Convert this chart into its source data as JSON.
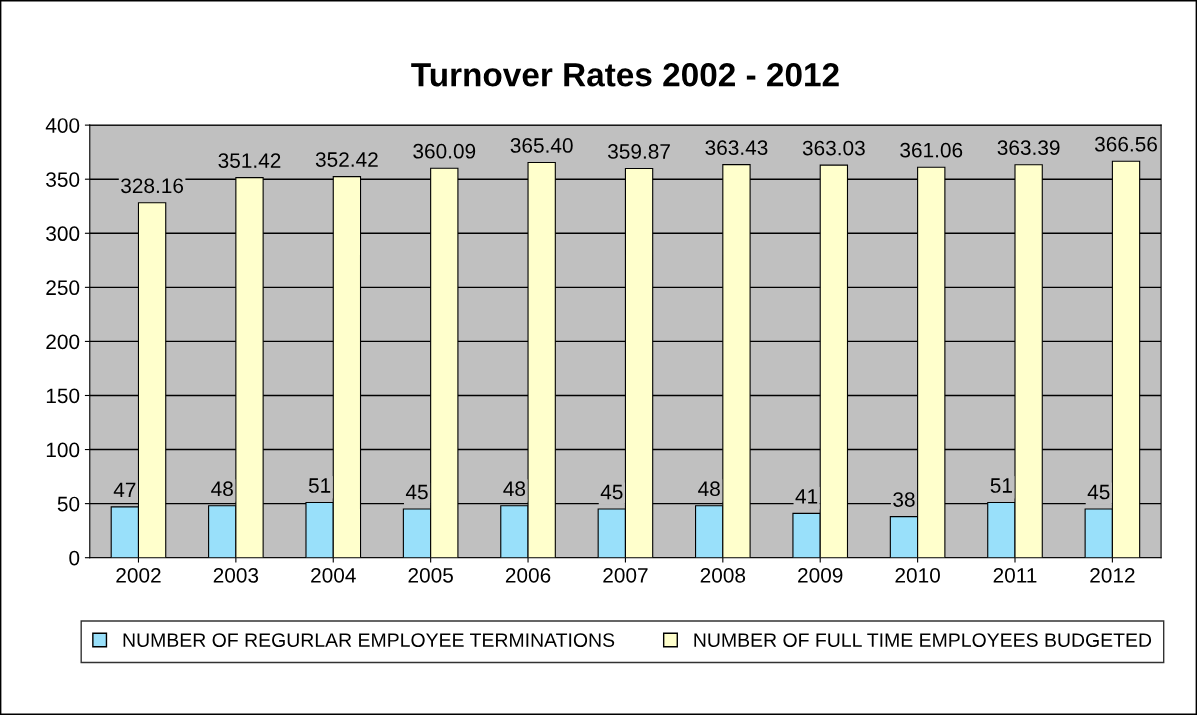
{
  "chart_data": {
    "type": "bar",
    "title": "Turnover Rates 2002 - 2012",
    "categories": [
      "2002",
      "2003",
      "2004",
      "2005",
      "2006",
      "2007",
      "2008",
      "2009",
      "2010",
      "2011",
      "2012"
    ],
    "series": [
      {
        "name": "NUMBER OF REGURLAR EMPLOYEE TERMINATIONS",
        "color": "#99e0fa",
        "values": [
          47,
          48,
          51,
          45,
          48,
          45,
          48,
          41,
          38,
          51,
          45
        ],
        "value_labels": [
          "47",
          "48",
          "51",
          "45",
          "48",
          "45",
          "48",
          "41",
          "38",
          "51",
          "45"
        ]
      },
      {
        "name": "NUMBER OF FULL TIME EMPLOYEES BUDGETED",
        "color": "#ffffcc",
        "values": [
          328.16,
          351.42,
          352.42,
          360.09,
          365.4,
          359.87,
          363.43,
          363.03,
          361.06,
          363.39,
          366.56
        ],
        "value_labels": [
          "328.16",
          "351.42",
          "352.42",
          "360.09",
          "365.40",
          "359.87",
          "363.43",
          "363.03",
          "361.06",
          "363.39",
          "366.56"
        ]
      }
    ],
    "ylim": [
      0,
      400
    ],
    "yticks": [
      0,
      50,
      100,
      150,
      200,
      250,
      300,
      350,
      400
    ],
    "grid": "y",
    "legend": "bottom"
  }
}
